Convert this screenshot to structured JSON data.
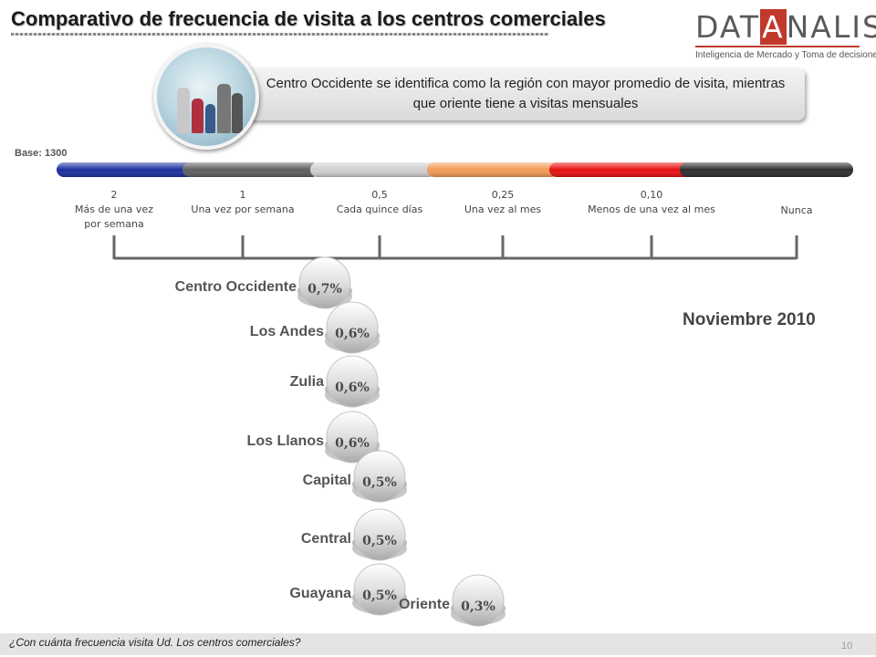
{
  "title": "Comparativo de frecuencia de visita a los centros comerciales",
  "logo": {
    "pre": "DAT",
    "accent": "A",
    "post": "NALISIS",
    "tagline": "Inteligencia de Mercado y Toma de decisiones"
  },
  "callout": "Centro Occidente se identifica como la región con mayor promedio de visita, mientras  que oriente tiene a visitas mensuales",
  "base": "Base:  1300",
  "date_label": "Noviembre 2010",
  "footer_question": "¿Con cuánta frecuencia visita Ud. Los centros comerciales?",
  "page_number": "10",
  "colors": {
    "scale_segments": [
      "#1a2fa0",
      "#5f5f5f",
      "#cfcfcf",
      "#f39a55",
      "#e81010",
      "#2e2e2e",
      "#2e2e2e"
    ],
    "bubble": "#cfcfcf",
    "region_text": "#555555"
  },
  "chart_data": {
    "type": "scatter",
    "x_axis": {
      "type": "frequency_scale",
      "ticks": [
        {
          "value": 2,
          "value_label": "2",
          "label": "Más de una vez por semana"
        },
        {
          "value": 1,
          "value_label": "1",
          "label": "Una vez por semana"
        },
        {
          "value": 0.5,
          "value_label": "0,5",
          "label": "Cada quince días"
        },
        {
          "value": 0.25,
          "value_label": "0,25",
          "label": "Una vez al mes"
        },
        {
          "value": 0.1,
          "value_label": "0,10",
          "label": "Menos de una vez al mes"
        },
        {
          "value": 0,
          "value_label": "",
          "label": "Nunca"
        }
      ]
    },
    "series": [
      {
        "region": "Centro Occidente",
        "value": 0.7,
        "label": "0,7%"
      },
      {
        "region": "Los Andes",
        "value": 0.6,
        "label": "0,6%"
      },
      {
        "region": "Zulia",
        "value": 0.6,
        "label": "0,6%"
      },
      {
        "region": "Los Llanos",
        "value": 0.6,
        "label": "0,6%"
      },
      {
        "region": "Capital",
        "value": 0.5,
        "label": "0,5%"
      },
      {
        "region": "Central",
        "value": 0.5,
        "label": "0,5%"
      },
      {
        "region": "Guayana",
        "value": 0.5,
        "label": "0,5%"
      },
      {
        "region": "Oriente",
        "value": 0.3,
        "label": "0,3%"
      }
    ]
  }
}
